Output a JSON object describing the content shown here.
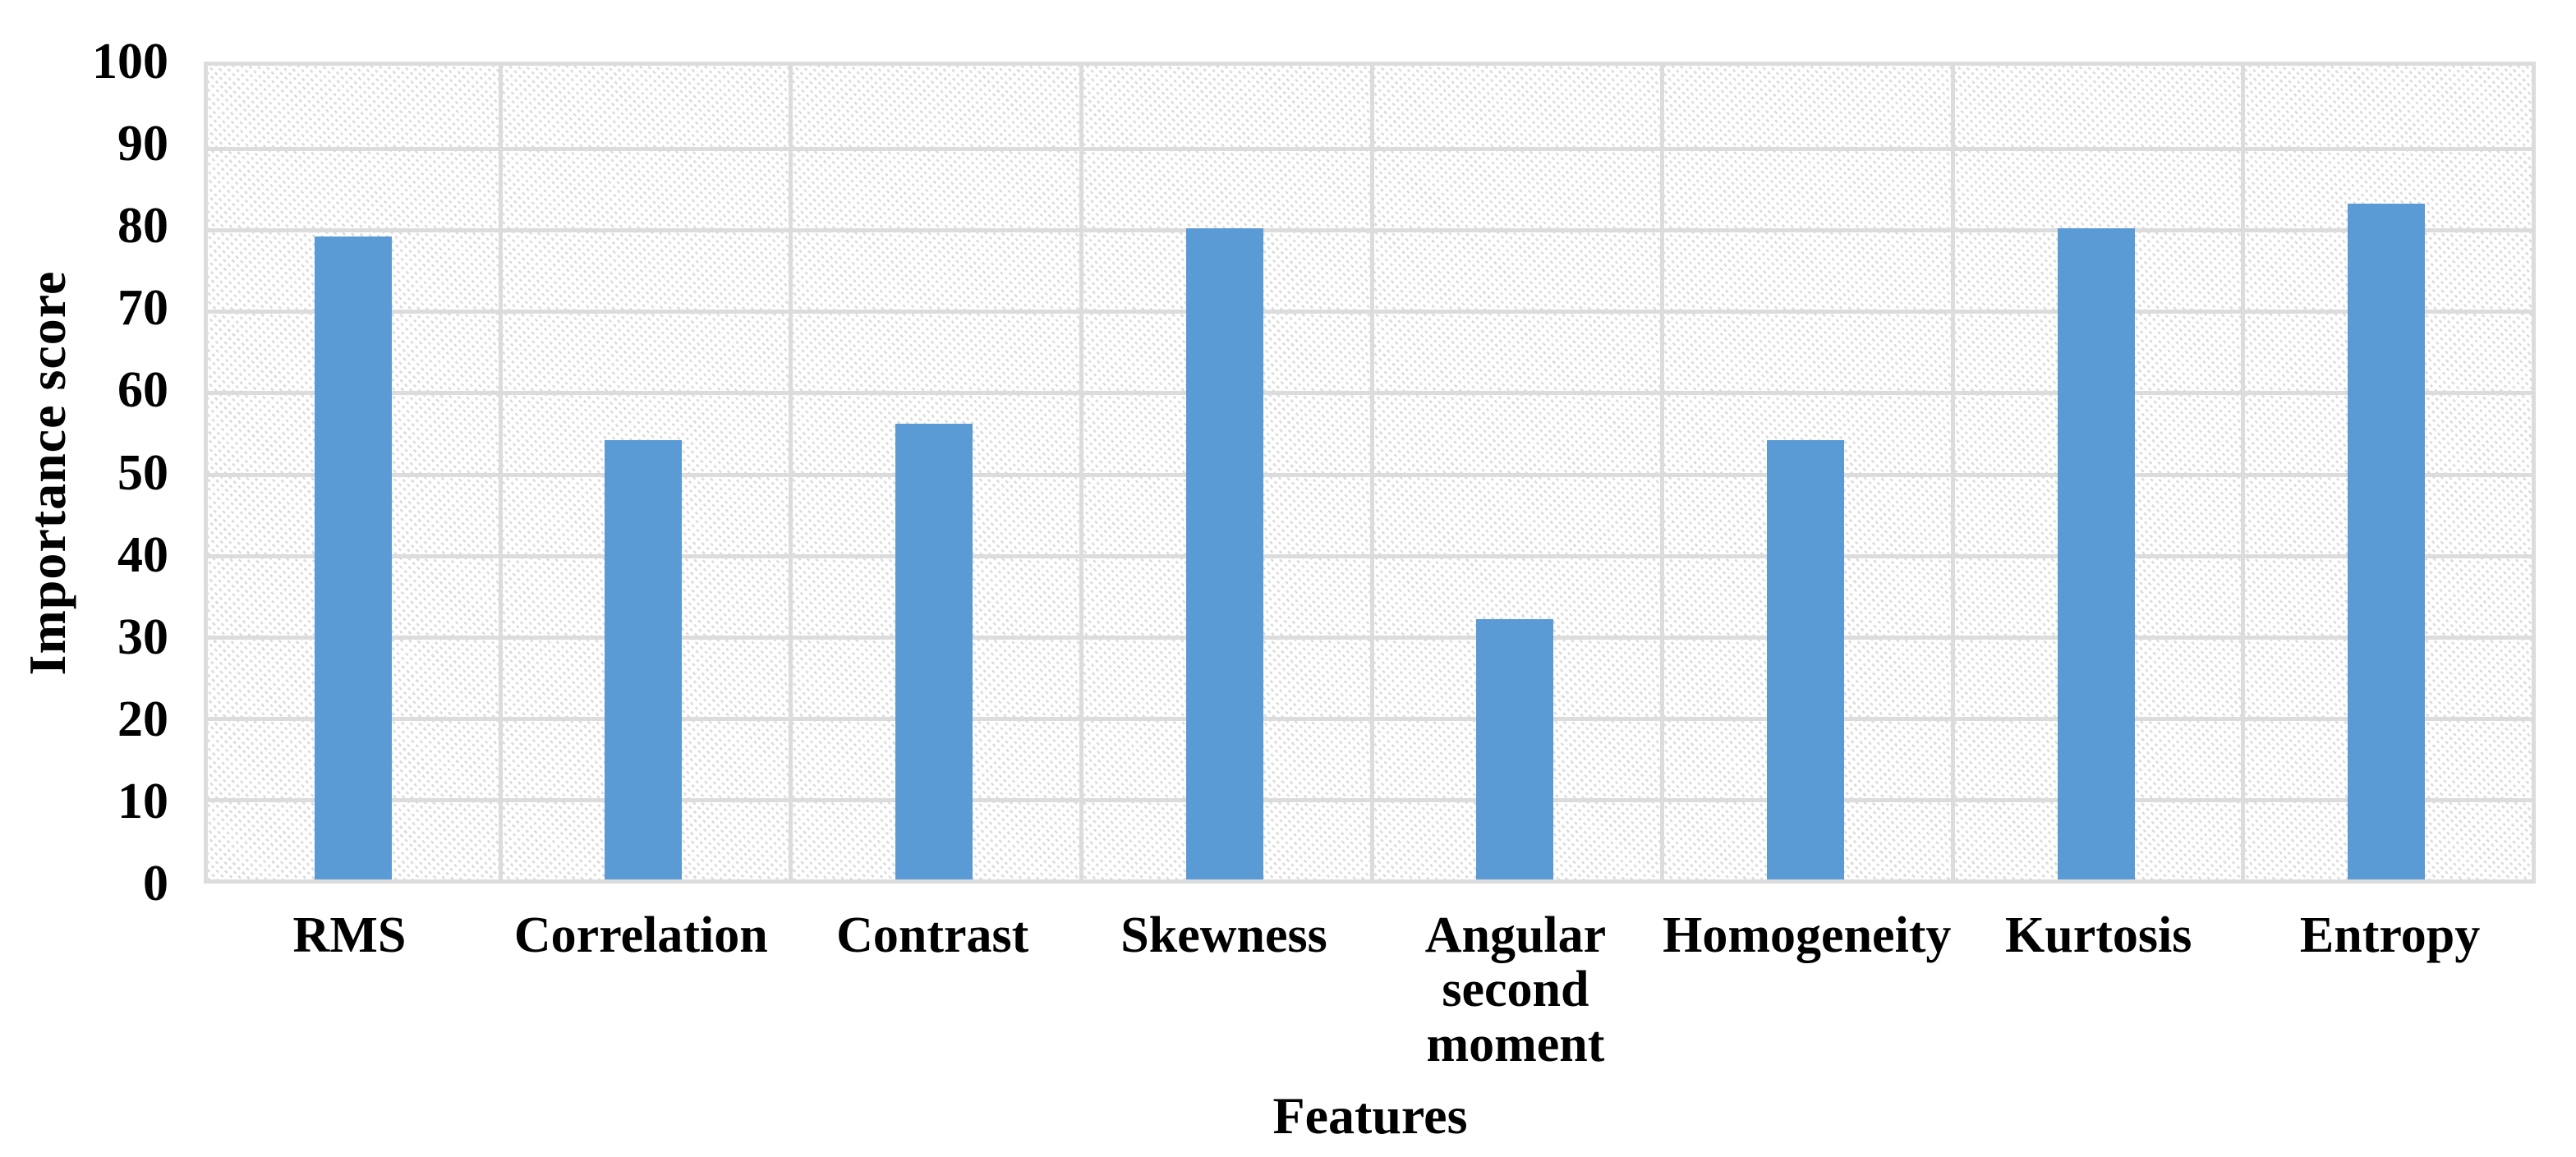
{
  "chart_data": {
    "type": "bar",
    "categories": [
      "RMS",
      "Correlation",
      "Contrast",
      "Skewness",
      "Angular second moment",
      "Homogeneity",
      "Kurtosis",
      "Entropy"
    ],
    "values": [
      79,
      54,
      56,
      80,
      32,
      54,
      80,
      83
    ],
    "xlabel": "Features",
    "ylabel": "Importance score",
    "ylim": [
      0,
      100
    ],
    "yticks": [
      0,
      10,
      20,
      30,
      40,
      50,
      60,
      70,
      80,
      90,
      100
    ],
    "grid": {
      "horizontal_gridlines": true,
      "vertical_category_separators": true,
      "plot_border": true
    },
    "legend_position": "none",
    "plot_background": "light diagonal hatch pattern",
    "colors": {
      "bar": "#5b9bd5",
      "gridline": "#dcdcdc",
      "hatch": "#dbdbdb",
      "text": "#000000",
      "background": "#ffffff"
    }
  }
}
